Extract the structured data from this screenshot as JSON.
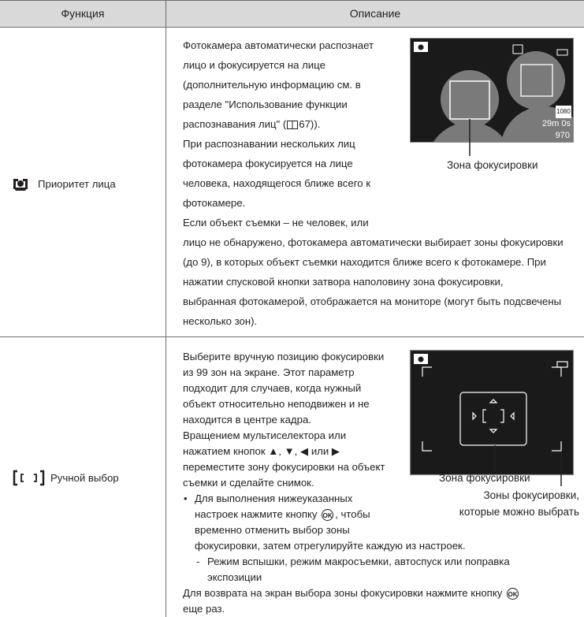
{
  "table": {
    "header": [
      "Функция",
      "Описание"
    ],
    "rows": [
      {
        "function": "Приоритет лица",
        "description": [
          {
            "lines": [
              "Фотокамера автоматически распознает",
              "лицо и фокусируется на лице",
              "(дополнительную информацию см. в",
              "разделе \"Использование функции",
              [
                "распознавания лиц\" (",
                "67))."
              ],
              "При распознавании нескольких лиц",
              "фотокамера фокусируется на лице",
              "человека, находящегося ближе всего к",
              "фотокамере.",
              "Если объект съемки – не человек, или",
              "лицо не обнаружено, фотокамера автоматически выбирает зоны фокусировки",
              "(до 9), в которых объект съемки находится ближе всего к фотокамере. При",
              "нажатии спусковой кнопки затвора наполовину зона фокусировки,",
              "выбранная фотокамерой, отображается на мониторе (могут быть подсвечены",
              "несколько зон)."
            ]
          }
        ],
        "figure": {
          "screen_texts": [
            "1080",
            "29m 0s",
            "970"
          ],
          "labels": [
            "Зона фокусировки"
          ]
        }
      },
      {
        "function": "Ручной выбор",
        "description": [
          {
            "lines": [
              "Выберите вручную позицию фокусировки",
              "из 99 зон на экране. Этот параметр",
              "подходит для случаев, когда нужный",
              "объект относительно неподвижен и не",
              "находится в центре кадра.",
              "Вращением мультиселектора или",
              "нажатием кнопок ▲, ▼, ◀ или ▶",
              "переместите зону фокусировки на объект",
              "съемки и сделайте снимок."
            ]
          },
          {
            "marker": "•",
            "lines": [
              "Для выполнения нижеуказанных",
              [
                "настроек нажмите кнопку ",
                "OK",
                ", чтобы"
              ],
              "временно отменить выбор зоны",
              "фокусировки, затем отрегулируйте каждую из настроек."
            ]
          },
          {
            "marker": "-",
            "lines": [
              "Режим вспышки, режим макросъемки, автоспуск или поправка",
              "экспозиции"
            ]
          },
          {
            "lines": [
              [
                "Для возврата на экран выбора зоны фокусировки нажмите кнопку ",
                "OK"
              ],
              "еще раз."
            ]
          }
        ],
        "figure": {
          "labels": [
            "Зона фокусировки",
            "Зоны фокусировки,",
            "которые можно выбрать"
          ]
        }
      }
    ]
  }
}
